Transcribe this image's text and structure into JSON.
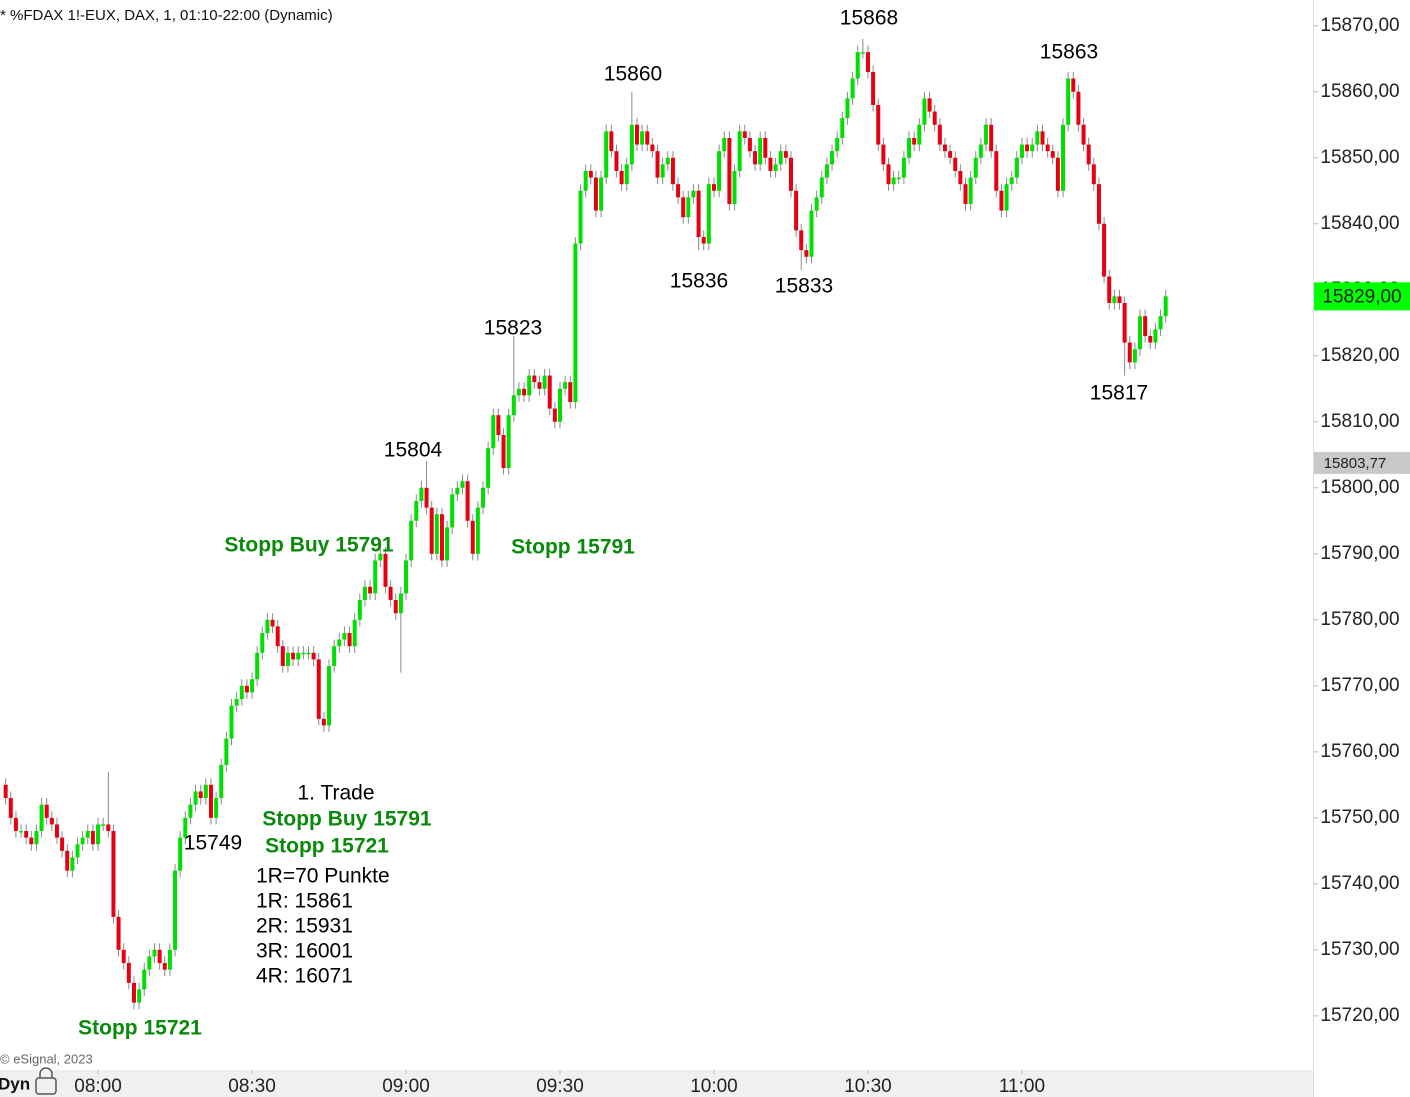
{
  "chart_data": {
    "type": "candlestick",
    "title": "* %FDAX 1!-EUX, DAX, 1, 01:10-22:00 (Dynamic)",
    "footer": "© eSignal, 2023",
    "mode_label": "Dyn",
    "up_color": "#00e000",
    "down_color": "#e60012",
    "wick_color": "#8a8a8a",
    "xlim": [
      460.9,
      716.7
    ],
    "xticks": [
      {
        "value": 480,
        "label": "08:00"
      },
      {
        "value": 510,
        "label": "08:30"
      },
      {
        "value": 540,
        "label": "09:00"
      },
      {
        "value": 570,
        "label": "09:30"
      },
      {
        "value": 600,
        "label": "10:00"
      },
      {
        "value": 630,
        "label": "10:30"
      },
      {
        "value": 660,
        "label": "11:00"
      }
    ],
    "ylim": [
      15712.1,
      15873.9
    ],
    "yticks": [
      {
        "value": 15870,
        "label": "15870,00"
      },
      {
        "value": 15860,
        "label": "15860,00"
      },
      {
        "value": 15850,
        "label": "15850,00"
      },
      {
        "value": 15840,
        "label": "15840,00"
      },
      {
        "value": 15830,
        "label": "15830,00"
      },
      {
        "value": 15820,
        "label": "15820,00"
      },
      {
        "value": 15810,
        "label": "15810,00"
      },
      {
        "value": 15800,
        "label": "15800,00"
      },
      {
        "value": 15790,
        "label": "15790,00"
      },
      {
        "value": 15780,
        "label": "15780,00"
      },
      {
        "value": 15770,
        "label": "15770,00"
      },
      {
        "value": 15760,
        "label": "15760,00"
      },
      {
        "value": 15750,
        "label": "15750,00"
      },
      {
        "value": 15740,
        "label": "15740,00"
      },
      {
        "value": 15730,
        "label": "15730,00"
      },
      {
        "value": 15720,
        "label": "15720,00"
      }
    ],
    "last_price": {
      "value": 15829,
      "label": "15829,00",
      "color": "#00ff00"
    },
    "reference_price": {
      "value": 15803.77,
      "label": "15803,77",
      "color": "#c8c8c8"
    },
    "annotations": [
      {
        "text": "15868",
        "color": "#000000"
      },
      {
        "text": "15863",
        "color": "#000000"
      },
      {
        "text": "15860",
        "color": "#000000"
      },
      {
        "text": "15836",
        "color": "#000000"
      },
      {
        "text": "15833",
        "color": "#000000"
      },
      {
        "text": "15823",
        "color": "#000000"
      },
      {
        "text": "15817",
        "color": "#000000"
      },
      {
        "text": "15804",
        "color": "#000000"
      },
      {
        "text": "Stopp Buy 15791",
        "color": "#0a8a0a",
        "bold": true
      },
      {
        "text": "Stopp 15791",
        "color": "#0a8a0a",
        "bold": true
      },
      {
        "text": "1. Trade",
        "color": "#000000"
      },
      {
        "text": "Stopp Buy 15791",
        "color": "#0a8a0a",
        "bold": true
      },
      {
        "text": "Stopp 15721",
        "color": "#0a8a0a",
        "bold": true
      },
      {
        "text": "15749",
        "color": "#000000"
      },
      {
        "text": "1R=70 Punkte",
        "color": "#000000"
      },
      {
        "text": "1R: 15861",
        "color": "#000000"
      },
      {
        "text": "2R: 15931",
        "color": "#000000"
      },
      {
        "text": "3R: 16001",
        "color": "#000000"
      },
      {
        "text": "4R: 16071",
        "color": "#000000"
      },
      {
        "text": "Stopp 15721",
        "color": "#0a8a0a",
        "bold": true
      }
    ],
    "x": [
      462,
      463,
      464,
      465,
      466,
      467,
      468,
      469,
      470,
      471,
      472,
      473,
      474,
      475,
      476,
      477,
      478,
      479,
      480,
      481,
      482,
      483,
      484,
      485,
      486,
      487,
      488,
      489,
      490,
      491,
      492,
      493,
      494,
      495,
      496,
      497,
      498,
      499,
      500,
      501,
      502,
      503,
      504,
      505,
      506,
      507,
      508,
      509,
      510,
      511,
      512,
      513,
      514,
      515,
      516,
      517,
      518,
      519,
      520,
      521,
      522,
      523,
      524,
      525,
      526,
      527,
      528,
      529,
      530,
      531,
      532,
      533,
      534,
      535,
      536,
      537,
      538,
      539,
      540,
      541,
      542,
      543,
      544,
      545,
      546,
      547,
      548,
      549,
      550,
      551,
      552,
      553,
      554,
      555,
      556,
      557,
      558,
      559,
      560,
      561,
      562,
      563,
      564,
      565,
      566,
      567,
      568,
      569,
      570,
      571,
      572,
      573,
      574,
      575,
      576,
      577,
      578,
      579,
      580,
      581,
      582,
      583,
      584,
      585,
      586,
      587,
      588,
      589,
      590,
      591,
      592,
      593,
      594,
      595,
      596,
      597,
      598,
      599,
      600,
      601,
      602,
      603,
      604,
      605,
      606,
      607,
      608,
      609,
      610,
      611,
      612,
      613,
      614,
      615,
      616,
      617,
      618,
      619,
      620,
      621,
      622,
      623,
      624,
      625,
      626,
      627,
      628,
      629,
      630,
      631,
      632,
      633,
      634,
      635,
      636,
      637,
      638,
      639,
      640,
      641,
      642,
      643,
      644,
      645,
      646,
      647,
      648,
      649,
      650,
      651,
      652,
      653,
      654,
      655,
      656,
      657,
      658,
      659,
      660,
      661,
      662,
      663,
      664,
      665,
      666,
      667,
      668,
      669,
      670,
      671,
      672,
      673,
      674,
      675,
      676,
      677,
      678,
      679,
      680,
      681,
      682,
      683,
      684,
      685,
      686,
      687,
      688
    ],
    "open": [
      15755,
      15753,
      15750,
      15748,
      15748,
      15747,
      15746,
      15748,
      15752,
      15750,
      15749,
      15747,
      15745,
      15742,
      15744,
      15746,
      15747,
      15748,
      15746,
      15749,
      15749,
      15748,
      15735,
      15730,
      15728,
      15725,
      15722,
      15724,
      15727,
      15729,
      15730,
      15728,
      15727,
      15730,
      15742,
      15747,
      15750,
      15752,
      15754,
      15753,
      15755,
      15750,
      15753,
      15758,
      15762,
      15767,
      15768,
      15770,
      15769,
      15771,
      15775,
      15778,
      15780,
      15779,
      15776,
      15773,
      15775,
      15774,
      15775,
      15775,
      15775,
      15774,
      15765,
      15764,
      15773,
      15776,
      15777,
      15778,
      15776,
      15780,
      15783,
      15785,
      15784,
      15789,
      15790,
      15785,
      15783,
      15781,
      15784,
      15789,
      15795,
      15798,
      15800,
      15797,
      15790,
      15796,
      15789,
      15794,
      15799,
      15800,
      15801,
      15795,
      15790,
      15797,
      15800,
      15806,
      15811,
      15808,
      15803,
      15811,
      15814,
      15815,
      15814,
      15817,
      15816,
      15815,
      15817,
      15812,
      15810,
      15815,
      15816,
      15813,
      15837,
      15845,
      15848,
      15847,
      15842,
      15847,
      15854,
      15851,
      15848,
      15846,
      15849,
      15855,
      15852,
      15854,
      15852,
      15851,
      15847,
      15849,
      15850,
      15846,
      15844,
      15841,
      15844,
      15845,
      15838,
      15837,
      15846,
      15845,
      15851,
      15853,
      15843,
      15848,
      15854,
      15853,
      15851,
      15849,
      15853,
      15850,
      15848,
      15849,
      15851,
      15850,
      15845,
      15839,
      15836,
      15835,
      15842,
      15844,
      15847,
      15849,
      15851,
      15853,
      15856,
      15859,
      15862,
      15866,
      15866,
      15863,
      15858,
      15852,
      15849,
      15846,
      15847,
      15847,
      15850,
      15853,
      15852,
      15855,
      15859,
      15857,
      15855,
      15852,
      15851,
      15850,
      15848,
      15846,
      15843,
      15847,
      15850,
      15852,
      15855,
      15851,
      15845,
      15842,
      15846,
      15847,
      15850,
      15852,
      15851,
      15852,
      15854,
      15852,
      15851,
      15850,
      15845,
      15855,
      15862,
      15860,
      15855,
      15852,
      15849,
      15846,
      15840,
      15832,
      15828,
      15829,
      15828,
      15822,
      15819,
      15821,
      15826,
      15823,
      15822,
      15824,
      15826
    ],
    "high": [
      15756,
      15754,
      15751,
      15749,
      15749,
      15748,
      15749,
      15753,
      15753,
      15751,
      15750,
      15748,
      15746,
      15745,
      15747,
      15748,
      15749,
      15749,
      15750,
      15750,
      15757,
      15749,
      15736,
      15731,
      15729,
      15726,
      15725,
      15728,
      15730,
      15731,
      15731,
      15729,
      15731,
      15743,
      15748,
      15751,
      15753,
      15755,
      15755,
      15756,
      15756,
      15754,
      15759,
      15763,
      15768,
      15769,
      15771,
      15771,
      15772,
      15776,
      15779,
      15781,
      15781,
      15780,
      15777,
      15776,
      15776,
      15776,
      15776,
      15776,
      15776,
      15775,
      15766,
      15774,
      15777,
      15778,
      15779,
      15779,
      15781,
      15784,
      15786,
      15786,
      15790,
      15791,
      15791,
      15786,
      15784,
      15785,
      15790,
      15796,
      15799,
      15801,
      15804,
      15798,
      15797,
      15797,
      15795,
      15800,
      15801,
      15802,
      15802,
      15796,
      15798,
      15801,
      15807,
      15812,
      15812,
      15809,
      15812,
      15823,
      15816,
      15816,
      15818,
      15818,
      15817,
      15818,
      15818,
      15813,
      15816,
      15817,
      15817,
      15838,
      15846,
      15849,
      15849,
      15848,
      15848,
      15855,
      15855,
      15852,
      15849,
      15850,
      15860,
      15856,
      15855,
      15855,
      15853,
      15852,
      15850,
      15851,
      15851,
      15847,
      15845,
      15845,
      15846,
      15846,
      15839,
      15847,
      15847,
      15852,
      15854,
      15854,
      15849,
      15855,
      15855,
      15854,
      15852,
      15854,
      15854,
      15851,
      15850,
      15852,
      15852,
      15851,
      15846,
      15840,
      15837,
      15843,
      15845,
      15848,
      15850,
      15852,
      15854,
      15857,
      15860,
      15863,
      15867,
      15868,
      15867,
      15864,
      15859,
      15853,
      15850,
      15848,
      15848,
      15851,
      15854,
      15854,
      15856,
      15860,
      15860,
      15858,
      15856,
      15853,
      15852,
      15851,
      15849,
      15847,
      15848,
      15851,
      15853,
      15856,
      15856,
      15852,
      15846,
      15847,
      15848,
      15851,
      15853,
      15853,
      15853,
      15855,
      15855,
      15853,
      15852,
      15851,
      15856,
      15863,
      15863,
      15861,
      15856,
      15853,
      15850,
      15847,
      15841,
      15833,
      15830,
      15830,
      15829,
      15823,
      15822,
      15827,
      15827,
      15824,
      15825,
      15827,
      15830
    ],
    "low": [
      15752,
      15749,
      15747,
      15747,
      15746,
      15745,
      15745,
      15747,
      15749,
      15748,
      15746,
      15744,
      15741,
      15741,
      15743,
      15745,
      15746,
      15745,
      15745,
      15748,
      15747,
      15734,
      15729,
      15727,
      15724,
      15721,
      15721,
      15723,
      15726,
      15728,
      15727,
      15726,
      15726,
      15729,
      15741,
      15746,
      15749,
      15751,
      15752,
      15752,
      15749,
      15749,
      15752,
      15757,
      15761,
      15766,
      15767,
      15768,
      15768,
      15770,
      15774,
      15777,
      15778,
      15775,
      15772,
      15772,
      15773,
      15773,
      15774,
      15774,
      15773,
      15764,
      15763,
      15763,
      15772,
      15775,
      15776,
      15775,
      15775,
      15779,
      15782,
      15783,
      15783,
      15788,
      15784,
      15782,
      15780,
      15772,
      15783,
      15788,
      15794,
      15797,
      15796,
      15789,
      15789,
      15788,
      15788,
      15793,
      15798,
      15799,
      15794,
      15789,
      15789,
      15796,
      15799,
      15805,
      15807,
      15802,
      15802,
      15810,
      15813,
      15813,
      15813,
      15815,
      15814,
      15814,
      15811,
      15809,
      15809,
      15814,
      15812,
      15812,
      15836,
      15844,
      15846,
      15841,
      15841,
      15846,
      15850,
      15847,
      15845,
      15845,
      15848,
      15851,
      15851,
      15851,
      15850,
      15846,
      15846,
      15848,
      15845,
      15843,
      15840,
      15840,
      15843,
      15836,
      15836,
      15836,
      15844,
      15844,
      15850,
      15842,
      15842,
      15847,
      15852,
      15850,
      15848,
      15848,
      15849,
      15847,
      15847,
      15848,
      15849,
      15844,
      15838,
      15833,
      15834,
      15834,
      15841,
      15843,
      15846,
      15848,
      15850,
      15852,
      15855,
      15858,
      15861,
      15865,
      15862,
      15857,
      15851,
      15848,
      15845,
      15845,
      15846,
      15846,
      15849,
      15851,
      15851,
      15854,
      15856,
      15854,
      15851,
      15850,
      15849,
      15847,
      15845,
      15842,
      15842,
      15846,
      15849,
      15851,
      15850,
      15844,
      15841,
      15841,
      15845,
      15846,
      15849,
      15850,
      15850,
      15851,
      15851,
      15850,
      15849,
      15844,
      15844,
      15854,
      15859,
      15854,
      15851,
      15848,
      15845,
      15839,
      15831,
      15827,
      15827,
      15827,
      15817,
      15818,
      15818,
      15820,
      15822,
      15821,
      15821,
      15823,
      15825
    ],
    "close": [
      15753,
      15750,
      15748,
      15748,
      15747,
      15746,
      15748,
      15752,
      15750,
      15749,
      15747,
      15745,
      15742,
      15744,
      15746,
      15747,
      15748,
      15746,
      15749,
      15749,
      15748,
      15735,
      15730,
      15728,
      15725,
      15722,
      15724,
      15727,
      15729,
      15730,
      15728,
      15727,
      15730,
      15742,
      15747,
      15750,
      15752,
      15754,
      15753,
      15755,
      15750,
      15753,
      15758,
      15762,
      15767,
      15768,
      15770,
      15769,
      15771,
      15775,
      15778,
      15780,
      15779,
      15776,
      15773,
      15775,
      15774,
      15775,
      15775,
      15775,
      15774,
      15765,
      15764,
      15773,
      15776,
      15777,
      15778,
      15776,
      15780,
      15783,
      15785,
      15784,
      15789,
      15790,
      15785,
      15783,
      15781,
      15784,
      15789,
      15795,
      15798,
      15800,
      15797,
      15790,
      15796,
      15789,
      15794,
      15799,
      15800,
      15801,
      15795,
      15790,
      15797,
      15800,
      15806,
      15811,
      15808,
      15803,
      15811,
      15814,
      15815,
      15814,
      15817,
      15816,
      15815,
      15817,
      15812,
      15810,
      15815,
      15816,
      15813,
      15837,
      15845,
      15848,
      15847,
      15842,
      15847,
      15854,
      15851,
      15848,
      15846,
      15849,
      15855,
      15852,
      15854,
      15852,
      15851,
      15847,
      15849,
      15850,
      15846,
      15844,
      15841,
      15844,
      15845,
      15838,
      15837,
      15846,
      15845,
      15851,
      15853,
      15843,
      15848,
      15854,
      15853,
      15851,
      15849,
      15853,
      15850,
      15848,
      15849,
      15851,
      15850,
      15845,
      15839,
      15836,
      15835,
      15842,
      15844,
      15847,
      15849,
      15851,
      15853,
      15856,
      15859,
      15862,
      15866,
      15866,
      15863,
      15858,
      15852,
      15849,
      15846,
      15847,
      15847,
      15850,
      15853,
      15852,
      15855,
      15859,
      15857,
      15855,
      15852,
      15851,
      15850,
      15848,
      15846,
      15843,
      15847,
      15850,
      15852,
      15855,
      15851,
      15845,
      15842,
      15846,
      15847,
      15850,
      15852,
      15851,
      15852,
      15854,
      15852,
      15851,
      15850,
      15845,
      15855,
      15862,
      15860,
      15855,
      15852,
      15849,
      15846,
      15840,
      15832,
      15828,
      15829,
      15828,
      15822,
      15819,
      15821,
      15826,
      15823,
      15822,
      15824,
      15826,
      15829
    ]
  }
}
